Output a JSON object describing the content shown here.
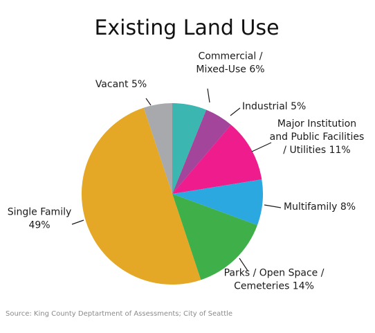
{
  "chart_data": {
    "type": "pie",
    "title": "Existing Land Use",
    "slices": [
      {
        "label_lines": [
          "Commercial /",
          "Mixed-Use 6%"
        ],
        "name": "Commercial / Mixed-Use",
        "value": 6,
        "color": "#3bb6b0"
      },
      {
        "label_lines": [
          "Industrial 5%"
        ],
        "name": "Industrial",
        "value": 5,
        "color": "#a2459b"
      },
      {
        "label_lines": [
          "Major Institution",
          "and Public Facilities",
          "/ Utilities 11%"
        ],
        "name": "Major Institution and Public Facilities / Utilities",
        "value": 11,
        "color": "#ee1c8c"
      },
      {
        "label_lines": [
          "Multifamily 8%"
        ],
        "name": "Multifamily",
        "value": 8,
        "color": "#2ba8e0"
      },
      {
        "label_lines": [
          "Parks / Open Space /",
          "Cemeteries 14%"
        ],
        "name": "Parks / Open Space / Cemeteries",
        "value": 14,
        "color": "#3faf4a"
      },
      {
        "label_lines": [
          "Single Family",
          "49%"
        ],
        "name": "Single Family",
        "value": 49,
        "color": "#e4a826"
      },
      {
        "label_lines": [
          "Vacant 5%"
        ],
        "name": "Vacant",
        "value": 5,
        "color": "#a7a9ac"
      }
    ],
    "start": "12 o'clock",
    "direction": "clockwise",
    "legend": "none (direct labels)"
  },
  "source": "Source: King County Deptartment of Assessments; City of Seattle"
}
